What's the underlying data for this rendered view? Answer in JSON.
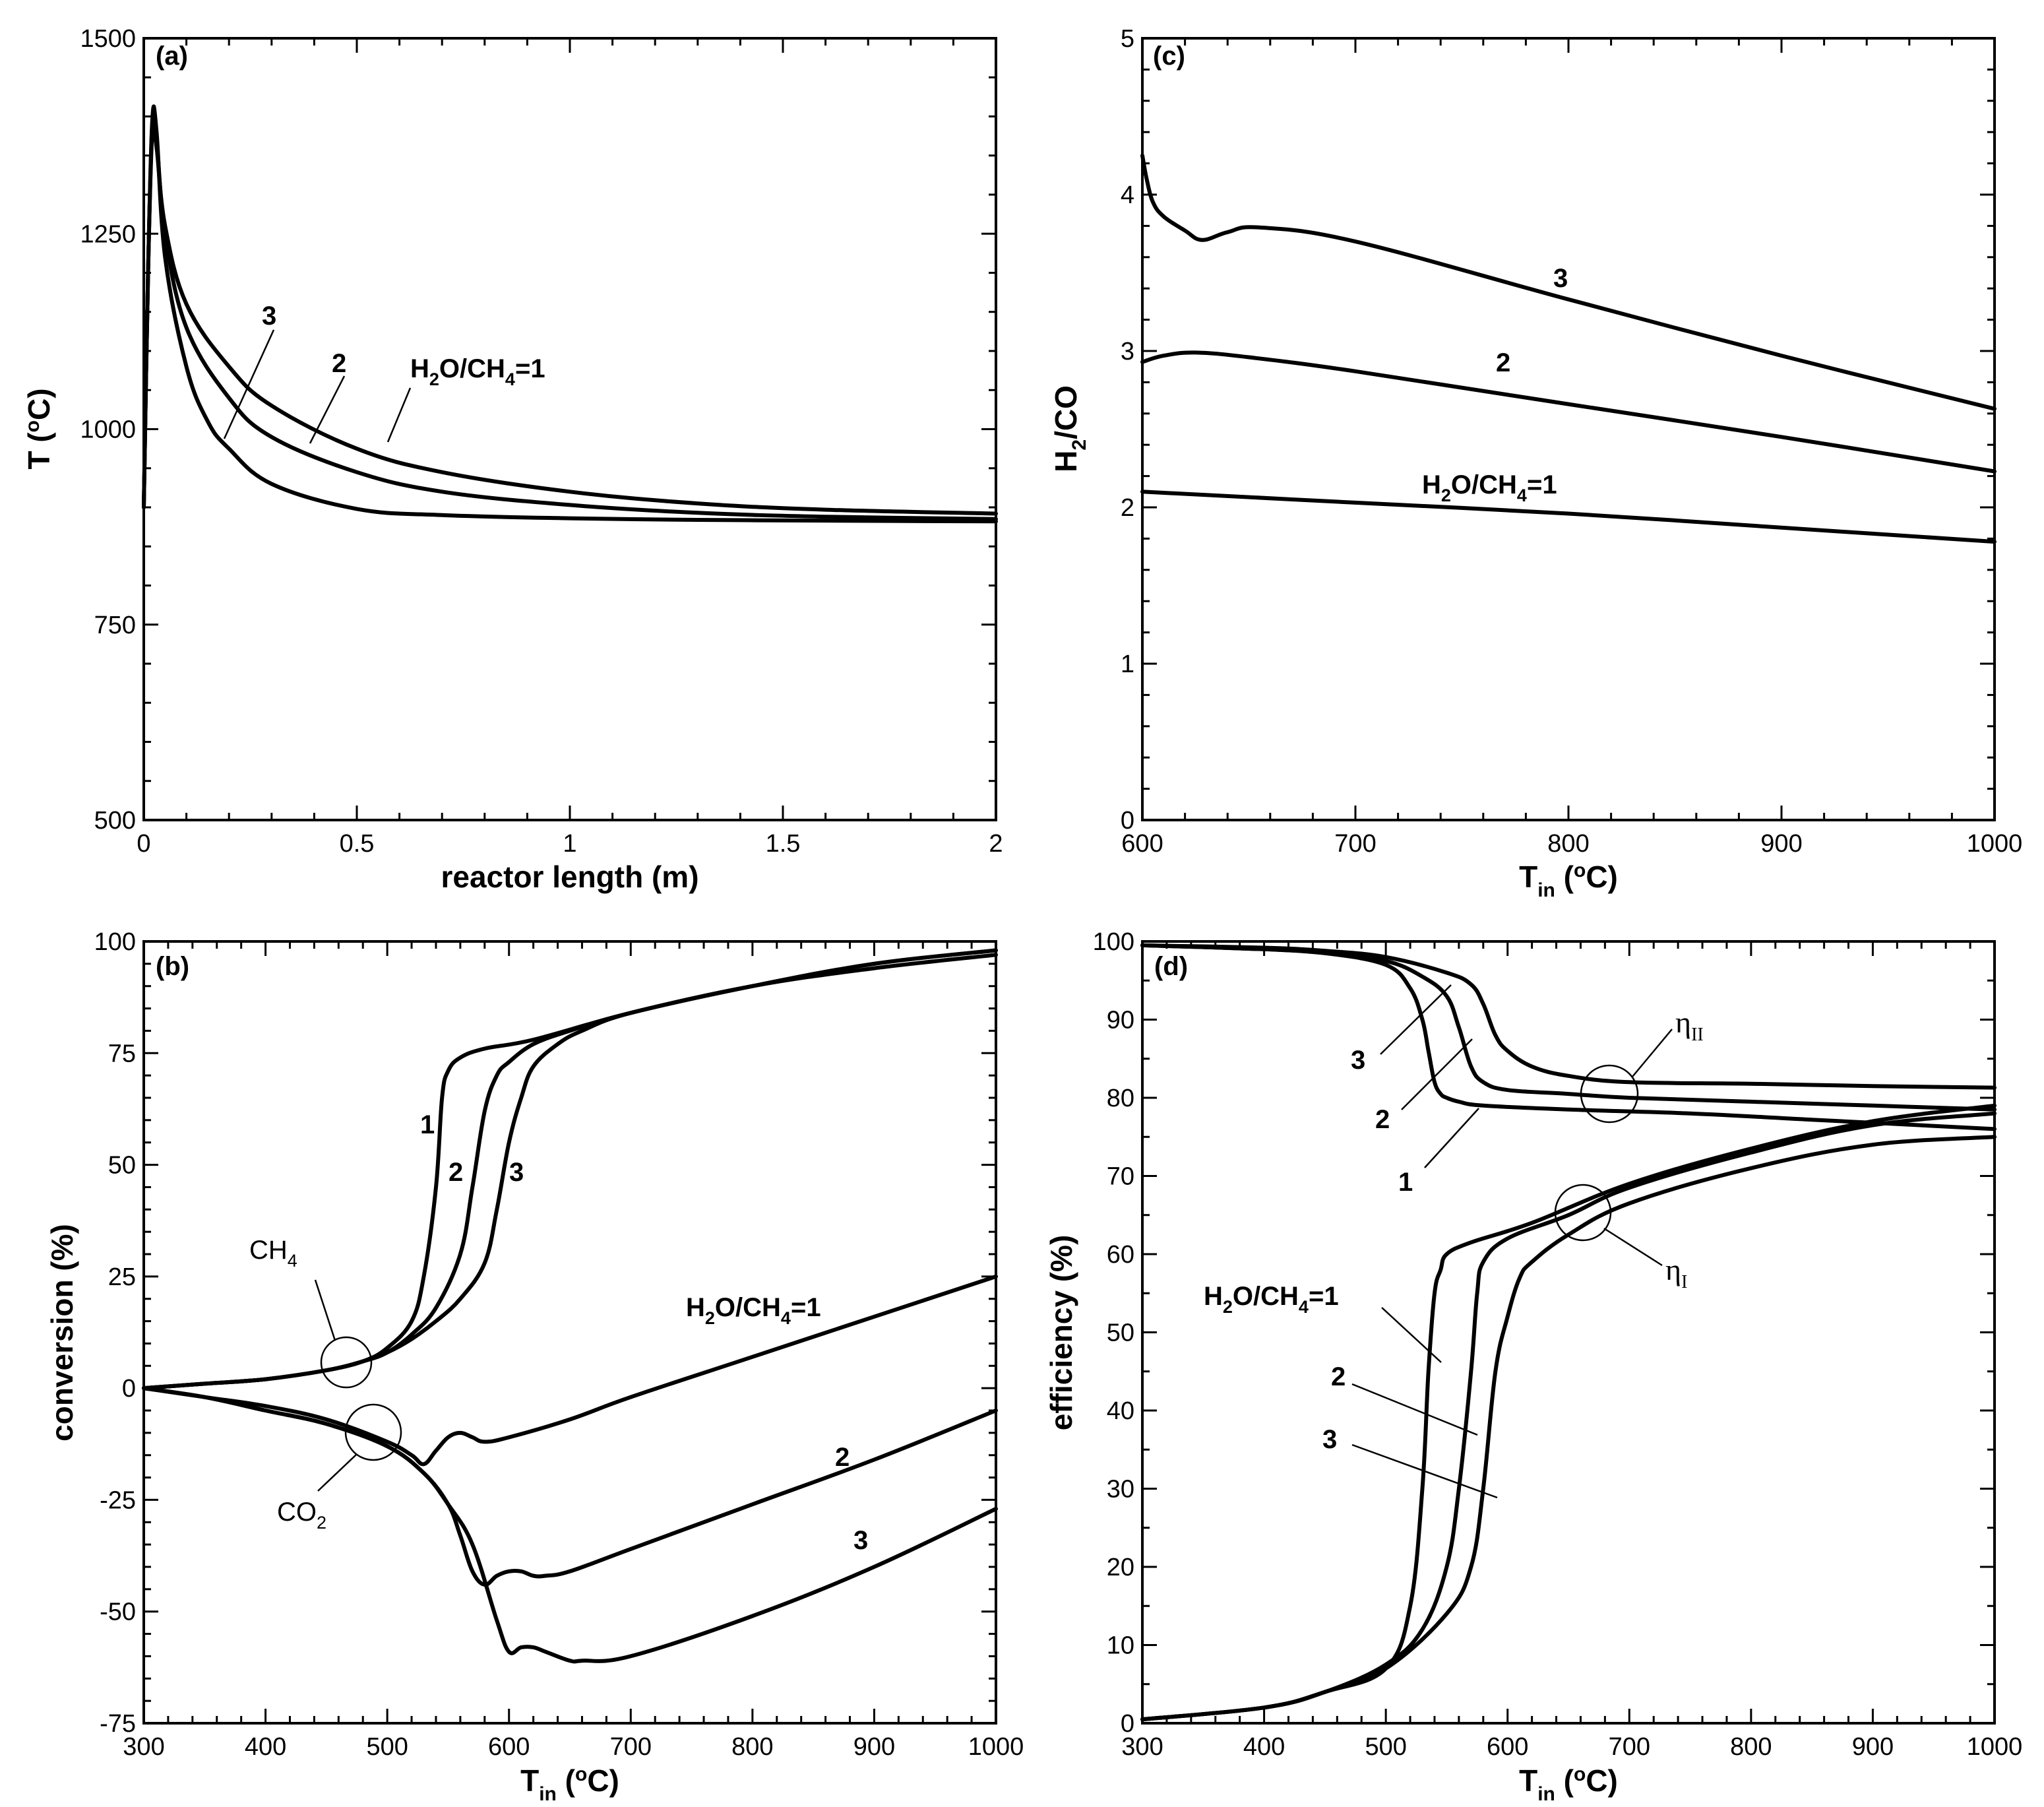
{
  "chart_data": [
    {
      "id": "a",
      "type": "line",
      "panel_label": "(a)",
      "ylabel": "T (°C)",
      "xlabel": "reactor length (m)",
      "xlim": [
        0,
        2
      ],
      "ylim": [
        500,
        1500
      ],
      "xticks": [
        0,
        0.5,
        1,
        1.5,
        2
      ],
      "xtick_labels": [
        "0",
        "0.5",
        "1",
        "1.5",
        "2"
      ],
      "yticks": [
        500,
        750,
        1000,
        1250,
        1500
      ],
      "ytick_labels": [
        "500",
        "750",
        "1000",
        "1250",
        "1500"
      ],
      "series": [
        {
          "name": "H2O/CH4=1",
          "x": [
            0,
            0.01,
            0.02,
            0.03,
            0.05,
            0.1,
            0.2,
            0.3,
            0.5,
            0.7,
            1.0,
            1.3,
            1.6,
            2.0
          ],
          "y": [
            900,
            1200,
            1380,
            1360,
            1260,
            1160,
            1080,
            1030,
            975,
            945,
            920,
            905,
            897,
            892
          ]
        },
        {
          "name": "2",
          "x": [
            0,
            0.01,
            0.02,
            0.03,
            0.05,
            0.1,
            0.2,
            0.3,
            0.5,
            0.7,
            1.0,
            1.3,
            1.6,
            2.0
          ],
          "y": [
            900,
            1200,
            1390,
            1370,
            1250,
            1130,
            1040,
            990,
            945,
            920,
            903,
            893,
            888,
            885
          ]
        },
        {
          "name": "3",
          "x": [
            0,
            0.01,
            0.02,
            0.03,
            0.05,
            0.1,
            0.15,
            0.2,
            0.3,
            0.5,
            0.7,
            1.0,
            1.3,
            1.6,
            2.0
          ],
          "y": [
            900,
            1200,
            1395,
            1380,
            1220,
            1080,
            1010,
            975,
            930,
            898,
            890,
            886,
            884,
            883,
            882
          ]
        }
      ],
      "annotations": [
        "3",
        "2",
        "H2O/CH4=1"
      ]
    },
    {
      "id": "b",
      "type": "line",
      "panel_label": "(b)",
      "ylabel": "conversion (%)",
      "xlabel": "T_in (°C)",
      "xlim": [
        300,
        1000
      ],
      "ylim": [
        -75,
        100
      ],
      "xticks": [
        300,
        400,
        500,
        600,
        700,
        800,
        900,
        1000
      ],
      "xtick_labels": [
        "300",
        "400",
        "500",
        "600",
        "700",
        "800",
        "900",
        "1000"
      ],
      "yticks": [
        -75,
        -50,
        -25,
        0,
        25,
        50,
        75,
        100
      ],
      "ytick_labels": [
        "-75",
        "-50",
        "-25",
        "0",
        "25",
        "50",
        "75",
        "100"
      ],
      "series": [
        {
          "name": "CH4 conversion, H2O/CH4=1",
          "x": [
            300,
            350,
            400,
            450,
            480,
            500,
            520,
            530,
            540,
            545,
            550,
            560,
            580,
            620,
            700,
            800,
            900,
            1000
          ],
          "y": [
            0,
            1,
            2,
            4,
            6,
            9,
            15,
            25,
            45,
            65,
            71,
            74,
            76,
            78,
            84,
            90,
            94,
            97
          ]
        },
        {
          "name": "CH4 conversion, 2",
          "x": [
            300,
            350,
            400,
            450,
            480,
            500,
            520,
            540,
            560,
            570,
            580,
            590,
            600,
            620,
            650,
            700,
            800,
            900,
            1000
          ],
          "y": [
            0,
            1,
            2,
            4,
            6,
            8,
            12,
            18,
            30,
            45,
            62,
            70,
            73,
            77,
            80,
            84,
            90,
            95,
            98
          ]
        },
        {
          "name": "CH4 conversion, 3",
          "x": [
            300,
            350,
            400,
            450,
            480,
            500,
            520,
            540,
            560,
            580,
            590,
            600,
            610,
            620,
            640,
            660,
            700,
            800,
            900,
            1000
          ],
          "y": [
            0,
            1,
            2,
            4,
            6,
            8,
            11,
            15,
            20,
            28,
            40,
            55,
            65,
            72,
            77,
            80,
            84,
            90,
            95,
            98
          ]
        },
        {
          "name": "CO2 conversion, H2O/CH4=1",
          "x": [
            300,
            350,
            400,
            450,
            500,
            520,
            530,
            540,
            550,
            560,
            570,
            580,
            600,
            650,
            700,
            800,
            900,
            1000
          ],
          "y": [
            0,
            -2,
            -4,
            -7,
            -12,
            -15,
            -17,
            -14,
            -11,
            -10,
            -11,
            -12,
            -11,
            -7,
            -2,
            7,
            16,
            25
          ]
        },
        {
          "name": "CO2 conversion, 2",
          "x": [
            300,
            350,
            400,
            450,
            500,
            530,
            550,
            560,
            570,
            580,
            590,
            600,
            610,
            620,
            630,
            650,
            700,
            800,
            900,
            1000
          ],
          "y": [
            0,
            -2,
            -5,
            -8,
            -13,
            -19,
            -26,
            -33,
            -41,
            -44,
            -42,
            -41,
            -41,
            -42,
            -42,
            -41,
            -36,
            -26,
            -16,
            -5
          ]
        },
        {
          "name": "CO2 conversion, 3",
          "x": [
            300,
            350,
            400,
            450,
            500,
            530,
            550,
            570,
            590,
            600,
            610,
            620,
            630,
            650,
            660,
            700,
            800,
            900,
            1000
          ],
          "y": [
            0,
            -2,
            -5,
            -8,
            -13,
            -19,
            -26,
            -35,
            -52,
            -59,
            -58,
            -58,
            -59,
            -61,
            -61,
            -60,
            -51,
            -40,
            -27
          ]
        }
      ],
      "annotations": [
        "1",
        "2",
        "3",
        "CH4",
        "CO2",
        "H2O/CH4=1",
        "2",
        "3"
      ]
    },
    {
      "id": "c",
      "type": "line",
      "panel_label": "(c)",
      "ylabel": "H2/CO",
      "xlabel": "T_in (°C)",
      "xlim": [
        600,
        1000
      ],
      "ylim": [
        0,
        5
      ],
      "xticks": [
        600,
        700,
        800,
        900,
        1000
      ],
      "xtick_labels": [
        "600",
        "700",
        "800",
        "900",
        "1000"
      ],
      "yticks": [
        0,
        1,
        2,
        3,
        4,
        5
      ],
      "ytick_labels": [
        "0",
        "1",
        "2",
        "3",
        "4",
        "5"
      ],
      "series": [
        {
          "name": "H2O/CH4=1",
          "x": [
            600,
            700,
            800,
            900,
            1000
          ],
          "y": [
            2.1,
            2.03,
            1.96,
            1.87,
            1.78
          ]
        },
        {
          "name": "2",
          "x": [
            600,
            610,
            625,
            650,
            700,
            800,
            900,
            1000
          ],
          "y": [
            2.93,
            2.97,
            2.99,
            2.96,
            2.87,
            2.66,
            2.45,
            2.23
          ]
        },
        {
          "name": "3",
          "x": [
            600,
            602,
            605,
            610,
            620,
            628,
            640,
            655,
            700,
            800,
            900,
            1000
          ],
          "y": [
            4.25,
            4.1,
            3.95,
            3.86,
            3.77,
            3.71,
            3.76,
            3.79,
            3.7,
            3.33,
            2.97,
            2.63
          ]
        }
      ],
      "annotations": [
        "3",
        "2",
        "H2O/CH4=1"
      ]
    },
    {
      "id": "d",
      "type": "line",
      "panel_label": "(d)",
      "ylabel": "efficiency (%)",
      "xlabel": "T_in (°C)",
      "xlim": [
        300,
        1000
      ],
      "ylim": [
        0,
        100
      ],
      "xticks": [
        300,
        400,
        500,
        600,
        700,
        800,
        900,
        1000
      ],
      "xtick_labels": [
        "300",
        "400",
        "500",
        "600",
        "700",
        "800",
        "900",
        "1000"
      ],
      "yticks": [
        0,
        10,
        20,
        30,
        40,
        50,
        60,
        70,
        80,
        90,
        100
      ],
      "ytick_labels": [
        "0",
        "10",
        "20",
        "30",
        "40",
        "50",
        "60",
        "70",
        "80",
        "90",
        "100"
      ],
      "series": [
        {
          "name": "ηII, H2O/CH4=1",
          "x": [
            300,
            400,
            450,
            500,
            520,
            530,
            535,
            540,
            545,
            550,
            560,
            580,
            650,
            750,
            850,
            1000
          ],
          "y": [
            99.5,
            99,
            98.5,
            97,
            94,
            90,
            86,
            82,
            80.5,
            80,
            79.5,
            79,
            78.5,
            78,
            77.2,
            76
          ]
        },
        {
          "name": "ηII, 2",
          "x": [
            300,
            400,
            450,
            500,
            530,
            550,
            560,
            570,
            580,
            600,
            650,
            700,
            800,
            900,
            1000
          ],
          "y": [
            99.5,
            99,
            98.5,
            97.5,
            95.5,
            93,
            89,
            84,
            82,
            81,
            80.5,
            80,
            79.5,
            79,
            78.5
          ]
        },
        {
          "name": "ηII, 3",
          "x": [
            300,
            400,
            450,
            500,
            550,
            570,
            580,
            590,
            600,
            620,
            650,
            700,
            800,
            900,
            1000
          ],
          "y": [
            99.5,
            99.2,
            98.8,
            98,
            96,
            94.5,
            92,
            88,
            86,
            84,
            82.8,
            82,
            81.8,
            81.5,
            81.3
          ]
        },
        {
          "name": "ηI, H2O/CH4=1",
          "x": [
            300,
            400,
            450,
            500,
            520,
            530,
            535,
            540,
            545,
            550,
            570,
            620,
            700,
            800,
            900,
            1000
          ],
          "y": [
            0.5,
            2,
            4,
            7,
            15,
            30,
            45,
            55,
            58,
            60,
            61.5,
            64,
            69,
            73.5,
            77,
            79
          ]
        },
        {
          "name": "ηI, 2",
          "x": [
            300,
            400,
            450,
            500,
            530,
            550,
            560,
            570,
            575,
            580,
            600,
            650,
            700,
            800,
            900,
            1000
          ],
          "y": [
            0.5,
            2,
            4,
            7.5,
            12,
            20,
            30,
            45,
            55,
            59,
            62,
            65,
            68.5,
            73,
            76.5,
            78
          ]
        },
        {
          "name": "ηI, 3",
          "x": [
            300,
            400,
            450,
            500,
            550,
            570,
            580,
            590,
            600,
            610,
            620,
            650,
            700,
            800,
            900,
            1000
          ],
          "y": [
            0.5,
            2,
            4,
            7,
            14,
            20,
            30,
            45,
            52,
            57,
            59,
            62.5,
            66.5,
            71,
            74,
            75
          ]
        }
      ],
      "annotations": [
        "3",
        "2",
        "1",
        "ηII",
        "ηI",
        "H2O/CH4=1",
        "2",
        "3"
      ]
    }
  ]
}
